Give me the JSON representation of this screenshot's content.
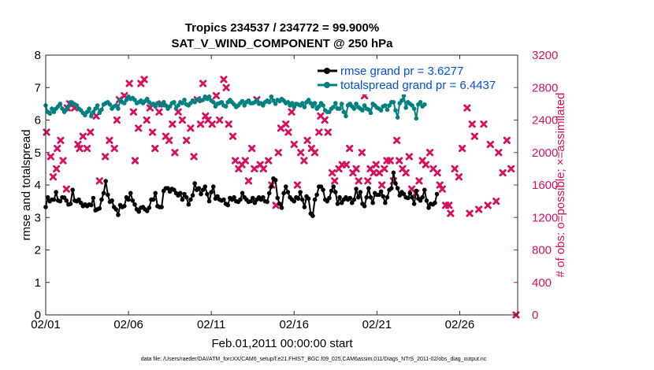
{
  "chart_data": {
    "type": "line",
    "title": "Tropics 234537 / 234772 = 99.900%",
    "subtitle": "SAT_V_WIND_COMPONENT @ 250 hPa",
    "xlabel": "Feb.01,2011 00:00:00 start",
    "ylabel_left": "rmse and totalspread",
    "ylabel_right": "# of obs: o=possible; ×=assimilated",
    "footnote": "data file: /Users/raeder/DAI/ATM_forcXX/CAM6_setup/f.e21.FHIST_BGC.f09_025.CAM6assim.011/Diags_NTrS_2011-02/obs_diag_output.nc",
    "x_range": [
      1,
      29.5
    ],
    "x_ticks": [
      1,
      6,
      11,
      16,
      21,
      26
    ],
    "x_tick_labels": [
      "02/01",
      "02/06",
      "02/11",
      "02/16",
      "02/21",
      "02/26"
    ],
    "y_left_range": [
      0,
      8
    ],
    "y_left_ticks": [
      "0",
      "1",
      "2",
      "3",
      "4",
      "5",
      "6",
      "7",
      "8"
    ],
    "y_right_range": [
      0,
      3200
    ],
    "y_right_ticks": [
      "0",
      "400",
      "800",
      "1200",
      "1600",
      "2000",
      "2400",
      "2800",
      "3200"
    ],
    "legend": [
      {
        "name": "rmse grand pr = 3.6277",
        "color": "#000000"
      },
      {
        "name": "totalspread grand pr = 6.4437",
        "color": "#008080"
      }
    ],
    "colors": {
      "rmse": "#000000",
      "spread": "#008080",
      "obs": "#d6105f",
      "text_legend": "#0050d8"
    },
    "series": [
      {
        "name": "rmse",
        "axis": "left",
        "t0": 1,
        "dt": 0.125,
        "values": [
          3.32,
          3.62,
          3.5,
          3.55,
          3.55,
          3.78,
          3.52,
          3.5,
          3.62,
          3.61,
          3.52,
          3.4,
          3.42,
          3.85,
          3.52,
          3.5,
          3.55,
          3.45,
          3.35,
          3.4,
          3.35,
          3.4,
          3.38,
          3.6,
          3.22,
          3.25,
          3.28,
          3.55,
          3.75,
          4.12,
          3.7,
          3.48,
          3.52,
          3.32,
          3.25,
          3.08,
          3.38,
          3.32,
          3.35,
          3.62,
          3.55,
          3.75,
          3.52,
          3.4,
          3.25,
          3.18,
          3.3,
          3.32,
          3.25,
          3.2,
          3.3,
          3.55,
          3.55,
          3.75,
          3.35,
          3.32,
          3.32,
          3.82,
          3.9,
          3.9,
          3.8,
          3.88,
          3.85,
          3.75,
          3.68,
          3.75,
          3.55,
          3.72,
          3.62,
          3.4,
          3.55,
          3.68,
          4.05,
          3.85,
          3.9,
          3.72,
          3.85,
          3.95,
          3.72,
          3.5,
          3.78,
          3.95,
          3.58,
          3.65,
          3.55,
          3.52,
          3.55,
          3.42,
          3.38,
          3.6,
          3.55,
          3.62,
          3.5,
          3.48,
          3.55,
          3.75,
          3.62,
          3.55,
          3.48,
          3.5,
          3.6,
          3.45,
          3.55,
          3.62,
          3.55,
          3.62,
          3.5,
          3.48,
          3.75,
          3.95,
          4.2,
          4.15,
          3.6,
          3.42,
          3.3,
          3.75,
          3.95,
          3.78,
          3.62,
          3.55,
          3.5,
          3.62,
          3.58,
          3.78,
          3.55,
          3.32,
          3.65,
          3.58,
          3.12,
          3.05,
          3.55,
          3.7,
          3.95,
          3.95,
          3.85,
          3.55,
          3.5,
          3.6,
          3.82,
          3.95,
          3.78,
          3.42,
          3.62,
          3.45,
          3.55,
          3.62,
          3.55,
          3.6,
          3.45,
          3.55,
          3.88,
          3.62,
          3.78,
          3.42,
          3.35,
          3.62,
          3.9,
          3.62,
          3.45,
          3.75,
          3.7,
          3.7,
          3.8,
          3.65,
          3.45,
          3.62,
          3.85,
          3.9,
          4.38,
          4.05,
          3.9,
          3.68,
          3.78,
          3.72,
          3.62,
          3.6,
          3.75,
          3.62,
          3.42,
          3.82,
          3.58,
          3.52,
          3.62,
          3.85,
          3.52,
          3.3,
          3.42,
          3.4,
          3.45,
          3.72
        ]
      },
      {
        "name": "totalspread",
        "axis": "left",
        "t0": 1,
        "dt": 0.125,
        "values": [
          6.45,
          6.25,
          6.2,
          6.35,
          6.25,
          6.35,
          6.42,
          6.5,
          6.35,
          6.25,
          6.32,
          6.42,
          6.55,
          6.52,
          6.48,
          6.45,
          6.35,
          6.3,
          6.22,
          6.15,
          6.25,
          6.35,
          6.12,
          6.25,
          6.35,
          6.45,
          6.22,
          6.32,
          6.48,
          6.52,
          6.55,
          6.48,
          6.35,
          6.42,
          6.45,
          6.35,
          6.62,
          6.55,
          6.52,
          6.62,
          6.72,
          6.65,
          6.68,
          6.62,
          6.52,
          6.55,
          6.6,
          6.52,
          6.58,
          6.65,
          6.55,
          6.48,
          6.5,
          6.42,
          6.52,
          6.5,
          6.45,
          6.55,
          6.45,
          6.35,
          6.42,
          6.52,
          6.55,
          6.35,
          6.45,
          6.55,
          6.52,
          6.62,
          6.48,
          6.45,
          6.52,
          6.6,
          6.55,
          6.62,
          6.65,
          6.6,
          6.62,
          6.72,
          6.65,
          6.72,
          6.6,
          6.55,
          6.42,
          6.5,
          6.52,
          6.55,
          6.45,
          6.42,
          6.55,
          6.62,
          6.55,
          6.48,
          6.4,
          6.45,
          6.52,
          6.58,
          6.45,
          6.55,
          6.6,
          6.52,
          6.52,
          6.55,
          6.62,
          6.5,
          6.52,
          6.45,
          6.55,
          6.6,
          6.55,
          6.72,
          6.6,
          6.5,
          6.62,
          6.58,
          6.65,
          6.6,
          6.52,
          6.55,
          6.45,
          6.52,
          6.4,
          6.5,
          6.48,
          6.45,
          6.52,
          6.4,
          6.55,
          6.62,
          6.52,
          6.42,
          6.52,
          6.35,
          6.42,
          6.52,
          6.45,
          6.3,
          6.25,
          6.25,
          6.35,
          6.4,
          6.52,
          6.35,
          6.35,
          6.5,
          6.25,
          6.12,
          6.45,
          6.5,
          6.42,
          6.35,
          6.5,
          6.4,
          6.35,
          6.3,
          6.45,
          6.35,
          6.32,
          6.22,
          6.5,
          6.45,
          6.38,
          6.35,
          6.3,
          6.42,
          6.45,
          6.32,
          6.45,
          6.55,
          6.55,
          6.3,
          6.08,
          6.52,
          6.6,
          6.75,
          6.38,
          6.55,
          6.5,
          6.45,
          6.35,
          6.05,
          6.48,
          6.55,
          6.42,
          6.48
        ]
      }
    ],
    "obs_assimilated": {
      "axis": "right",
      "points": [
        [
          1.05,
          2250
        ],
        [
          1.3,
          1950
        ],
        [
          1.45,
          1700
        ],
        [
          1.65,
          1800
        ],
        [
          1.7,
          2050
        ],
        [
          1.9,
          2150
        ],
        [
          2.05,
          1900
        ],
        [
          2.25,
          1550
        ],
        [
          2.3,
          2550
        ],
        [
          2.45,
          2600
        ],
        [
          2.75,
          2550
        ],
        [
          2.95,
          2100
        ],
        [
          3.05,
          2050
        ],
        [
          3.25,
          2200
        ],
        [
          3.5,
          2050
        ],
        [
          3.7,
          2250
        ],
        [
          4.05,
          2450
        ],
        [
          4.25,
          1650
        ],
        [
          4.6,
          1950
        ],
        [
          4.85,
          2150
        ],
        [
          5.15,
          2050
        ],
        [
          5.3,
          2400
        ],
        [
          5.45,
          2650
        ],
        [
          5.75,
          2700
        ],
        [
          6.05,
          2850
        ],
        [
          6.3,
          2500
        ],
        [
          6.4,
          1900
        ],
        [
          6.6,
          2300
        ],
        [
          6.75,
          2850
        ],
        [
          6.95,
          2900
        ],
        [
          7.1,
          2400
        ],
        [
          7.3,
          2550
        ],
        [
          7.45,
          2250
        ],
        [
          7.6,
          2050
        ],
        [
          7.85,
          2500
        ],
        [
          8.0,
          2600
        ],
        [
          8.25,
          2200
        ],
        [
          8.45,
          2150
        ],
        [
          8.65,
          2350
        ],
        [
          8.8,
          2000
        ],
        [
          9.0,
          2500
        ],
        [
          9.25,
          2400
        ],
        [
          9.5,
          2150
        ],
        [
          9.75,
          2300
        ],
        [
          9.95,
          1950
        ],
        [
          10.15,
          2650
        ],
        [
          10.35,
          2350
        ],
        [
          10.5,
          2850
        ],
        [
          10.65,
          2450
        ],
        [
          10.8,
          2400
        ],
        [
          11.05,
          2350
        ],
        [
          11.3,
          2700
        ],
        [
          11.5,
          2400
        ],
        [
          11.75,
          2900
        ],
        [
          11.9,
          2800
        ],
        [
          12.05,
          2350
        ],
        [
          12.3,
          2200
        ],
        [
          12.45,
          1900
        ],
        [
          12.65,
          1800
        ],
        [
          12.85,
          1850
        ],
        [
          13.05,
          1900
        ],
        [
          13.25,
          1650
        ],
        [
          13.45,
          2050
        ],
        [
          13.6,
          1800
        ],
        [
          13.75,
          2650
        ],
        [
          13.95,
          1850
        ],
        [
          14.15,
          1800
        ],
        [
          14.45,
          1900
        ],
        [
          14.65,
          1600
        ],
        [
          14.9,
          1350
        ],
        [
          15.05,
          2000
        ],
        [
          15.2,
          2300
        ],
        [
          15.5,
          2350
        ],
        [
          15.65,
          2250
        ],
        [
          15.85,
          2500
        ],
        [
          16.0,
          2100
        ],
        [
          16.2,
          1600
        ],
        [
          16.4,
          2000
        ],
        [
          16.6,
          1900
        ],
        [
          16.8,
          2150
        ],
        [
          17.05,
          2050
        ],
        [
          17.25,
          2000
        ],
        [
          17.5,
          2250
        ],
        [
          17.6,
          2450
        ],
        [
          17.85,
          2400
        ],
        [
          18.05,
          2250
        ],
        [
          18.3,
          1750
        ],
        [
          18.45,
          1650
        ],
        [
          18.7,
          1800
        ],
        [
          18.9,
          1850
        ],
        [
          19.15,
          1850
        ],
        [
          19.35,
          2050
        ],
        [
          19.55,
          1750
        ],
        [
          19.75,
          1800
        ],
        [
          19.9,
          1650
        ],
        [
          20.1,
          2000
        ],
        [
          20.25,
          2700
        ],
        [
          20.45,
          1650
        ],
        [
          20.6,
          1800
        ],
        [
          20.8,
          1750
        ],
        [
          20.95,
          1850
        ],
        [
          21.15,
          1750
        ],
        [
          21.3,
          1600
        ],
        [
          21.45,
          1800
        ],
        [
          21.6,
          1900
        ],
        [
          21.8,
          1900
        ],
        [
          22.0,
          1650
        ],
        [
          22.2,
          2150
        ],
        [
          22.35,
          1900
        ],
        [
          22.55,
          1800
        ],
        [
          22.75,
          1750
        ],
        [
          22.95,
          1950
        ],
        [
          23.1,
          1550
        ],
        [
          23.35,
          1500
        ],
        [
          23.55,
          1650
        ],
        [
          23.75,
          1900
        ],
        [
          23.95,
          1850
        ],
        [
          24.2,
          2000
        ],
        [
          24.4,
          1800
        ],
        [
          24.65,
          1750
        ],
        [
          24.8,
          1600
        ],
        [
          24.95,
          1550
        ],
        [
          25.15,
          1350
        ],
        [
          25.35,
          1350
        ],
        [
          25.45,
          1250
        ],
        [
          25.7,
          1800
        ],
        [
          25.95,
          1700
        ],
        [
          26.15,
          2050
        ],
        [
          26.45,
          2550
        ],
        [
          26.6,
          1250
        ],
        [
          26.75,
          2350
        ],
        [
          26.9,
          2200
        ],
        [
          27.15,
          1300
        ],
        [
          27.45,
          2350
        ],
        [
          27.7,
          1350
        ],
        [
          27.85,
          2100
        ],
        [
          28.05,
          2950
        ],
        [
          28.2,
          1400
        ],
        [
          28.35,
          2000
        ],
        [
          28.6,
          1750
        ],
        [
          28.85,
          2150
        ],
        [
          29.1,
          1800
        ],
        [
          29.4,
          0
        ]
      ]
    }
  }
}
